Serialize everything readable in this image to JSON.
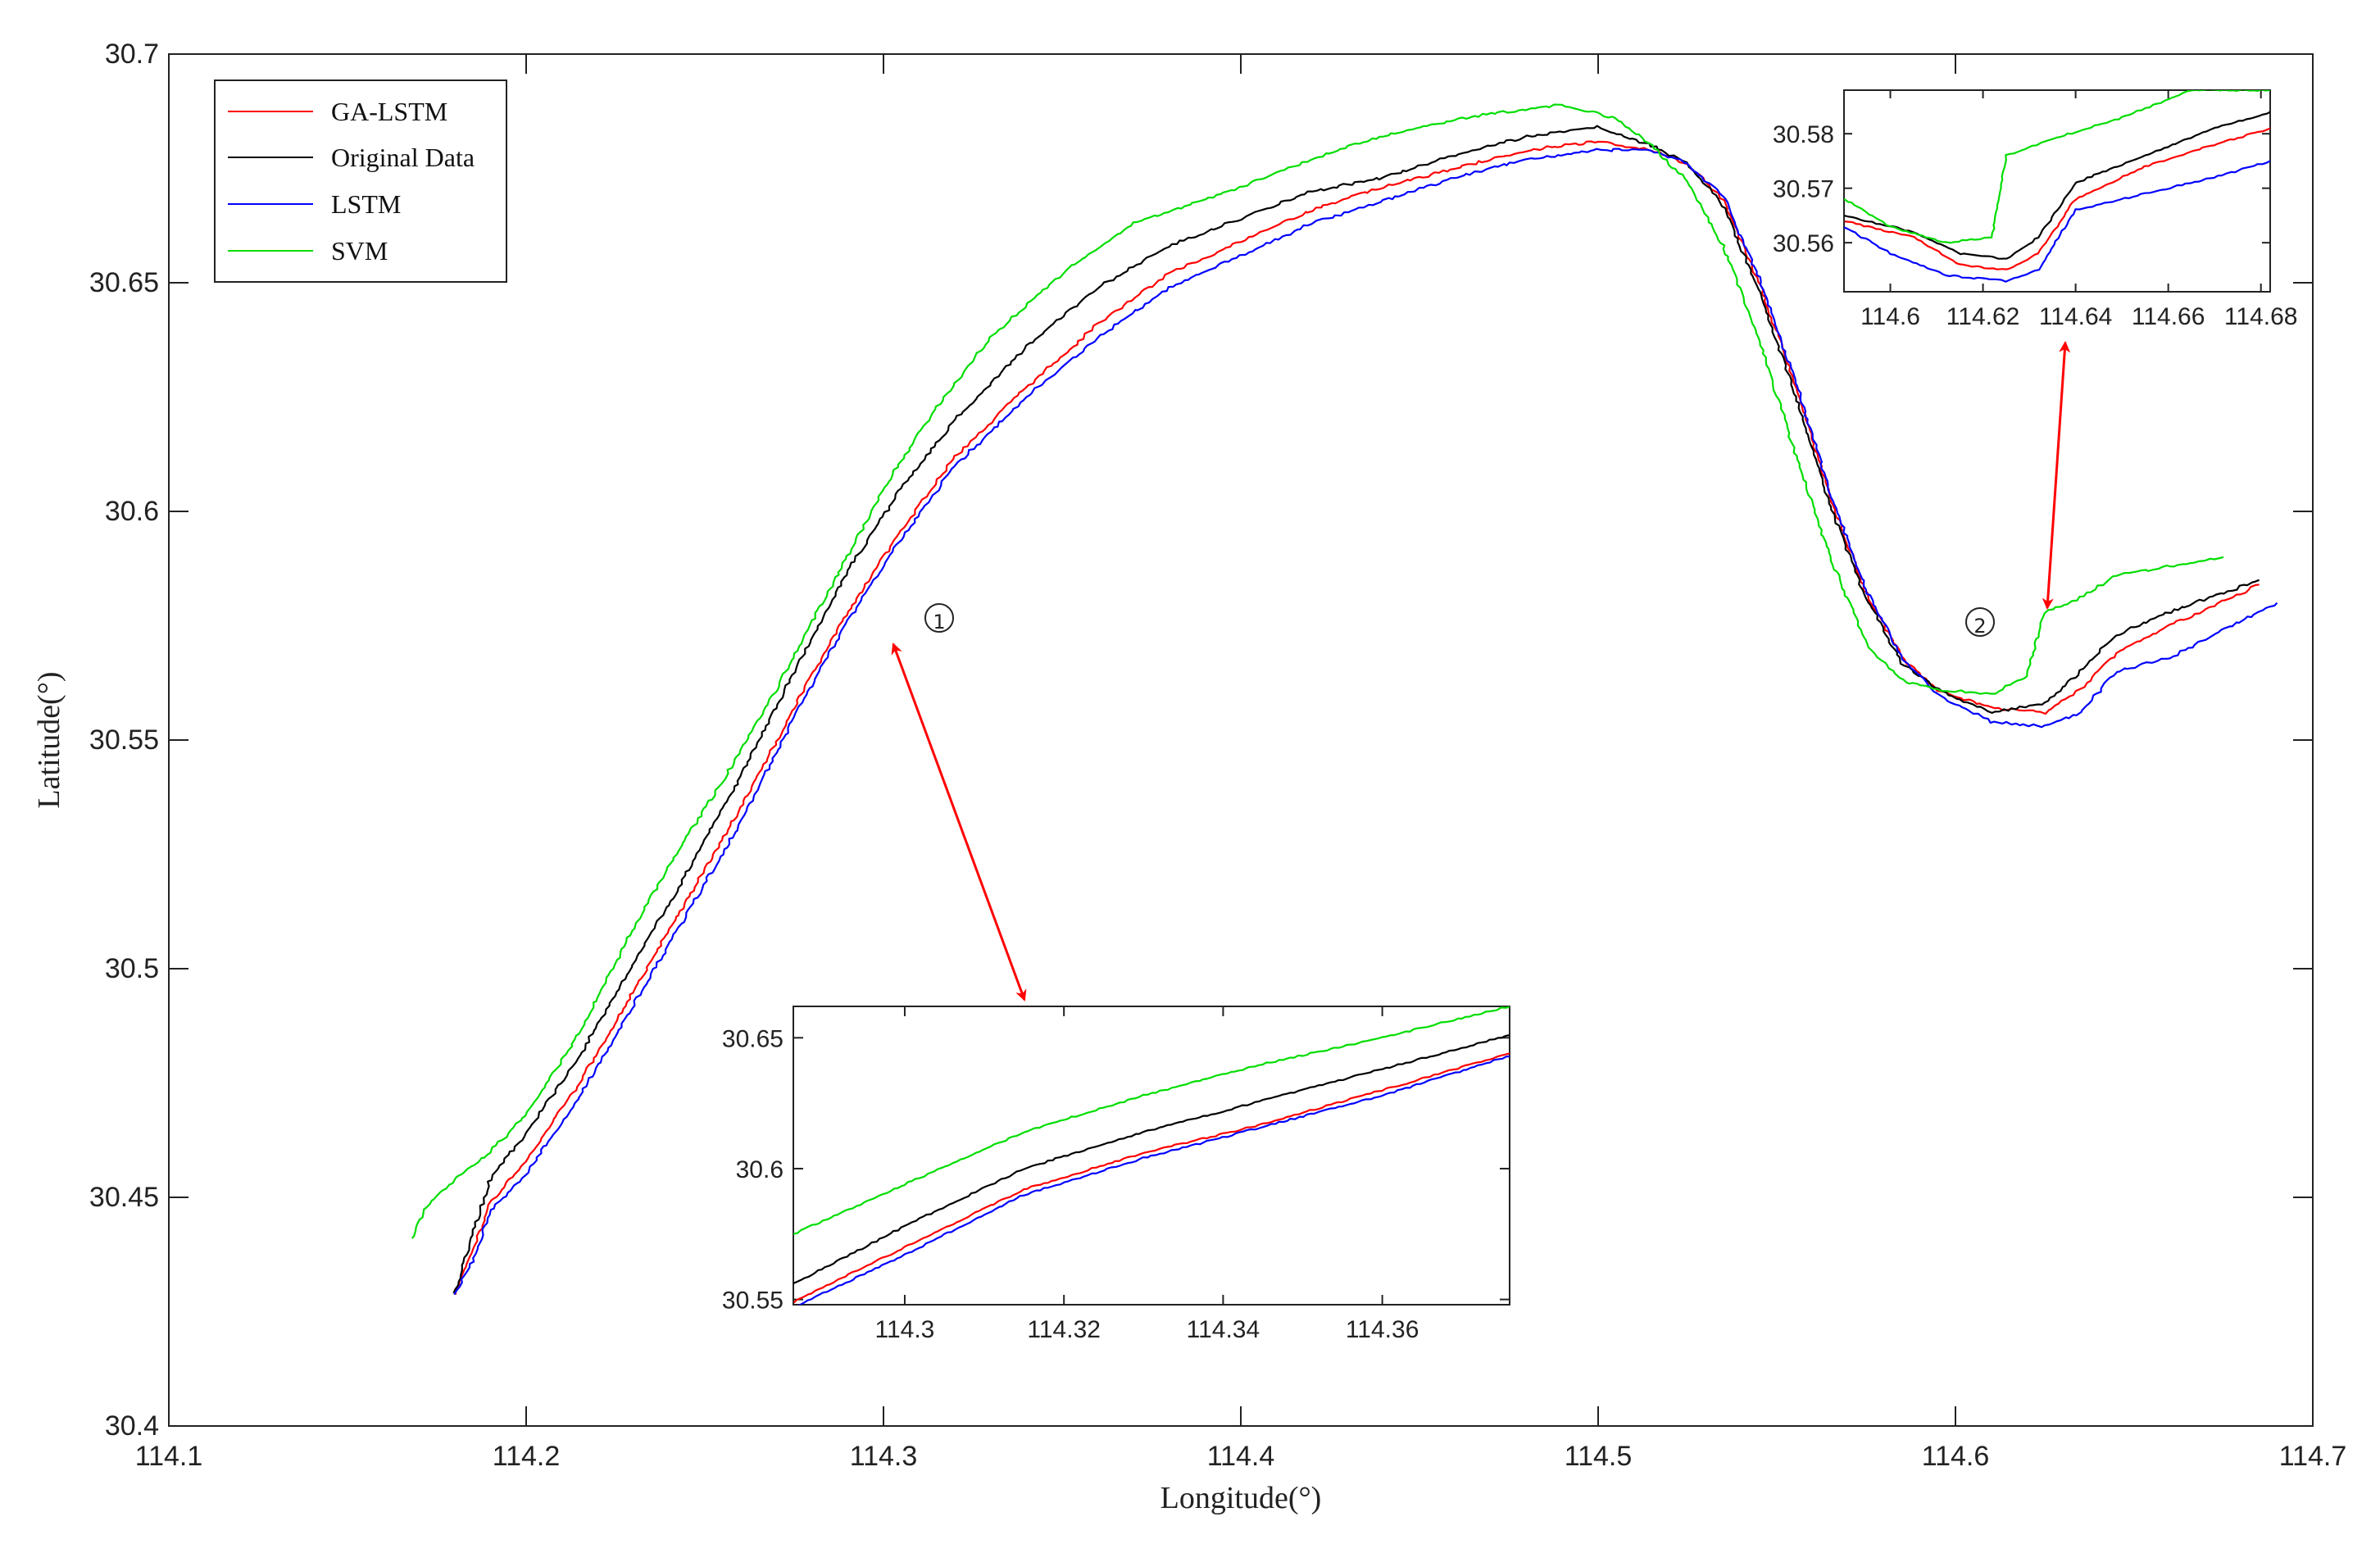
{
  "chart_data": {
    "type": "line",
    "xlabel": "Longitude(°)",
    "ylabel": "Latitude(°)",
    "xlim": [
      114.1,
      114.7
    ],
    "ylim": [
      30.4,
      30.7
    ],
    "xticks": [
      "114.1",
      "114.2",
      "114.3",
      "114.4",
      "114.5",
      "114.6",
      "114.7"
    ],
    "yticks": [
      "30.4",
      "30.45",
      "30.5",
      "30.55",
      "30.6",
      "30.65",
      "30.7"
    ],
    "legend": {
      "position": "top-left"
    },
    "series": [
      {
        "name": "GA-LSTM",
        "color": "#ff0000",
        "x": [
          114.18,
          114.185,
          114.19,
          114.2,
          114.215,
          114.23,
          114.245,
          114.26,
          114.275,
          114.29,
          114.305,
          114.32,
          114.34,
          114.36,
          114.38,
          114.4,
          114.42,
          114.44,
          114.46,
          114.48,
          114.5,
          114.515,
          114.525,
          114.535,
          114.545,
          114.555,
          114.565,
          114.575,
          114.585,
          114.595,
          114.61,
          114.625,
          114.635,
          114.645,
          114.66,
          114.685
        ],
        "y": [
          30.429,
          30.438,
          30.449,
          30.458,
          30.475,
          30.495,
          30.515,
          30.535,
          30.557,
          30.578,
          30.596,
          30.612,
          30.627,
          30.641,
          30.652,
          30.659,
          30.666,
          30.671,
          30.675,
          30.679,
          30.681,
          30.679,
          30.676,
          30.668,
          30.65,
          30.628,
          30.603,
          30.582,
          30.568,
          30.561,
          30.557,
          30.556,
          30.561,
          30.569,
          30.575,
          30.584
        ]
      },
      {
        "name": "Original Data",
        "color": "#000000",
        "x": [
          114.18,
          114.185,
          114.19,
          114.2,
          114.215,
          114.23,
          114.245,
          114.26,
          114.275,
          114.29,
          114.305,
          114.32,
          114.34,
          114.36,
          114.38,
          114.4,
          114.42,
          114.44,
          114.46,
          114.48,
          114.5,
          114.515,
          114.525,
          114.535,
          114.545,
          114.555,
          114.565,
          114.575,
          114.585,
          114.595,
          114.61,
          114.625,
          114.635,
          114.645,
          114.66,
          114.685
        ],
        "y": [
          30.429,
          30.442,
          30.454,
          30.464,
          30.481,
          30.501,
          30.521,
          30.542,
          30.565,
          30.587,
          30.605,
          30.62,
          30.636,
          30.649,
          30.658,
          30.664,
          30.67,
          30.673,
          30.678,
          30.682,
          30.684,
          30.68,
          30.676,
          30.667,
          30.648,
          30.626,
          30.601,
          30.581,
          30.567,
          30.561,
          30.556,
          30.558,
          30.565,
          30.573,
          30.578,
          30.585
        ]
      },
      {
        "name": "LSTM",
        "color": "#0000ff",
        "x": [
          114.18,
          114.185,
          114.19,
          114.2,
          114.215,
          114.23,
          114.245,
          114.26,
          114.275,
          114.29,
          114.305,
          114.32,
          114.34,
          114.36,
          114.38,
          114.4,
          114.42,
          114.44,
          114.46,
          114.48,
          114.5,
          114.515,
          114.525,
          114.535,
          114.545,
          114.555,
          114.565,
          114.575,
          114.585,
          114.595,
          114.61,
          114.625,
          114.635,
          114.645,
          114.66,
          114.69
        ],
        "y": [
          30.429,
          30.436,
          30.447,
          30.455,
          30.472,
          30.492,
          30.512,
          30.532,
          30.555,
          30.576,
          30.594,
          30.61,
          30.625,
          30.638,
          30.649,
          30.656,
          30.663,
          30.668,
          30.673,
          30.677,
          30.679,
          30.679,
          30.676,
          30.669,
          30.651,
          30.629,
          30.604,
          30.583,
          30.568,
          30.56,
          30.554,
          30.553,
          30.556,
          30.565,
          30.568,
          30.58
        ]
      },
      {
        "name": "SVM",
        "color": "#00dd00",
        "x": [
          114.168,
          114.172,
          114.18,
          114.19,
          114.2,
          114.215,
          114.23,
          114.245,
          114.255,
          114.27,
          114.285,
          114.3,
          114.315,
          114.33,
          114.35,
          114.37,
          114.39,
          114.41,
          114.43,
          114.45,
          114.47,
          114.49,
          114.505,
          114.515,
          114.525,
          114.535,
          114.545,
          114.555,
          114.565,
          114.575,
          114.585,
          114.595,
          114.61,
          114.62,
          114.625,
          114.635,
          114.645,
          114.66,
          114.675
        ],
        "y": [
          30.441,
          30.448,
          30.454,
          30.46,
          30.468,
          30.486,
          30.509,
          30.529,
          30.541,
          30.561,
          30.583,
          30.605,
          30.623,
          30.638,
          30.652,
          30.663,
          30.668,
          30.674,
          30.68,
          30.684,
          30.687,
          30.689,
          30.686,
          30.68,
          30.672,
          30.658,
          30.638,
          30.613,
          30.59,
          30.571,
          30.563,
          30.561,
          30.56,
          30.564,
          30.578,
          30.581,
          30.586,
          30.588,
          30.59
        ]
      }
    ],
    "insets": [
      {
        "id": "1",
        "xlim": [
          114.286,
          114.376
        ],
        "ylim": [
          30.548,
          30.662
        ],
        "xticks": [
          "114.3",
          "114.32",
          "114.34",
          "114.36"
        ],
        "yticks": [
          "30.55",
          "30.6",
          "30.65"
        ],
        "series": [
          {
            "name": "GA-LSTM",
            "x": [
              114.286,
              114.3,
              114.315,
              114.33,
              114.345,
              114.36,
              114.376
            ],
            "y": [
              30.549,
              30.57,
              30.592,
              30.606,
              30.617,
              30.63,
              30.644
            ]
          },
          {
            "name": "Original Data",
            "x": [
              114.286,
              114.3,
              114.315,
              114.33,
              114.345,
              114.36,
              114.376
            ],
            "y": [
              30.556,
              30.578,
              30.6,
              30.614,
              30.626,
              30.638,
              30.651
            ]
          },
          {
            "name": "LSTM",
            "x": [
              114.286,
              114.3,
              114.315,
              114.33,
              114.345,
              114.36,
              114.376
            ],
            "y": [
              30.547,
              30.567,
              30.59,
              30.604,
              30.616,
              30.628,
              30.643
            ]
          },
          {
            "name": "SVM",
            "x": [
              114.286,
              114.3,
              114.315,
              114.33,
              114.345,
              114.36,
              114.376
            ],
            "y": [
              30.575,
              30.594,
              30.614,
              30.628,
              30.64,
              30.65,
              30.662
            ]
          }
        ]
      },
      {
        "id": "2",
        "xlim": [
          114.59,
          114.682
        ],
        "ylim": [
          30.551,
          30.588
        ],
        "xticks": [
          "114.6",
          "114.62",
          "114.64",
          "114.66",
          "114.68"
        ],
        "yticks": [
          "30.56",
          "30.57",
          "30.58"
        ],
        "series": [
          {
            "name": "GA-LSTM",
            "x": [
              114.59,
              114.605,
              114.615,
              114.625,
              114.632,
              114.64,
              114.655,
              114.67,
              114.682
            ],
            "y": [
              30.564,
              30.561,
              30.556,
              30.555,
              30.558,
              30.568,
              30.574,
              30.578,
              30.581
            ]
          },
          {
            "name": "Original Data",
            "x": [
              114.59,
              114.605,
              114.615,
              114.625,
              114.632,
              114.64,
              114.655,
              114.67,
              114.682
            ],
            "y": [
              30.565,
              30.562,
              30.558,
              30.557,
              30.561,
              30.571,
              30.576,
              30.581,
              30.584
            ]
          },
          {
            "name": "LSTM",
            "x": [
              114.59,
              114.6,
              114.612,
              114.625,
              114.632,
              114.64,
              114.655,
              114.67,
              114.682
            ],
            "y": [
              30.563,
              30.558,
              30.554,
              30.553,
              30.555,
              30.566,
              30.569,
              30.572,
              30.575
            ]
          },
          {
            "name": "SVM",
            "x": [
              114.59,
              114.6,
              114.612,
              114.622,
              114.625,
              114.635,
              114.65,
              114.665,
              114.682
            ],
            "y": [
              30.568,
              30.563,
              30.56,
              30.561,
              30.576,
              30.579,
              30.583,
              30.588,
              30.588
            ]
          }
        ]
      }
    ],
    "annotations": [
      "①",
      "②"
    ]
  }
}
